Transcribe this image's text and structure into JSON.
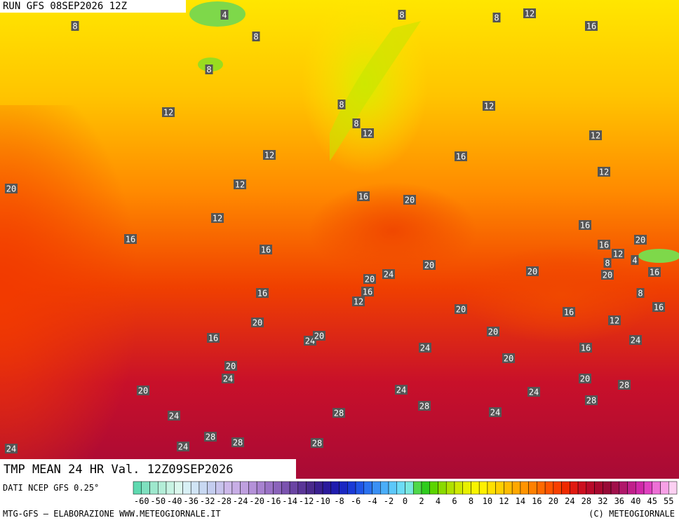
{
  "header": {
    "run": "RUN GFS 08SEP2026 12Z"
  },
  "map": {
    "title": "TMP MEAN 24 HR Val. 12Z09SEP2026",
    "labels": [
      4,
      8,
      8,
      8,
      12,
      16,
      8,
      8,
      12,
      8,
      12,
      8,
      12,
      12,
      12,
      16,
      12,
      20,
      12,
      16,
      20,
      12,
      16,
      16,
      16,
      16,
      12,
      20,
      8,
      4,
      20,
      24,
      20,
      20,
      20,
      16,
      16,
      16,
      12,
      8,
      16,
      20,
      16,
      20,
      12,
      20,
      16,
      24,
      20,
      24,
      24,
      16,
      20,
      20,
      24,
      20,
      28,
      20,
      24,
      24,
      28,
      28,
      24,
      28,
      24,
      28,
      28,
      24,
      28,
      24
    ]
  },
  "legend": {
    "source": "DATI NCEP GFS 0.25°",
    "ticks": [
      -60,
      -50,
      -40,
      -36,
      -32,
      -28,
      -24,
      -20,
      -16,
      -14,
      -12,
      -10,
      -8,
      -6,
      -4,
      -2,
      0,
      2,
      4,
      6,
      8,
      10,
      12,
      14,
      16,
      20,
      24,
      28,
      32,
      36,
      40,
      45,
      55
    ],
    "colors": [
      "#5fd9b0",
      "#7fe0bf",
      "#9ee8cd",
      "#b4eed8",
      "#c8f3e3",
      "#dcf8ee",
      "#d8f0f5",
      "#d0e4f5",
      "#c8d8f2",
      "#c4cdef",
      "#c8c4ec",
      "#cdb9ea",
      "#c8aee6",
      "#bfa0df",
      "#b491d8",
      "#a882d0",
      "#9a72c6",
      "#8b63bb",
      "#7b53af",
      "#6a44a3",
      "#5a3697",
      "#4a2a8c",
      "#3a2090",
      "#2a1a9c",
      "#1f1cae",
      "#1a28c2",
      "#1a3ad6",
      "#1f55e6",
      "#2a72f0",
      "#3a90f5",
      "#4aaef8",
      "#5cc8fa",
      "#6cdcf6",
      "#7ae8e0",
      "#4fd84a",
      "#2ecc1e",
      "#5cd400",
      "#8ada00",
      "#b0e000",
      "#cfe800",
      "#e8f000",
      "#f8f400",
      "#fff000",
      "#ffe000",
      "#ffcf00",
      "#ffbc00",
      "#ffa800",
      "#ff9400",
      "#ff8000",
      "#ff6a00",
      "#ff5400",
      "#f84000",
      "#ee2a00",
      "#e01a10",
      "#cc1020",
      "#b80a2a",
      "#a8082e",
      "#980a36",
      "#a0104a",
      "#b0186a",
      "#c0208a",
      "#d028a8",
      "#e040c0",
      "#ee70d6",
      "#f7a0e6",
      "#fcd0f2"
    ]
  },
  "footer": {
    "credit": "MTG-GFS — ELABORAZIONE WWW.METEOGIORNALE.IT",
    "copyright": "(C) METEOGIORNALE"
  }
}
